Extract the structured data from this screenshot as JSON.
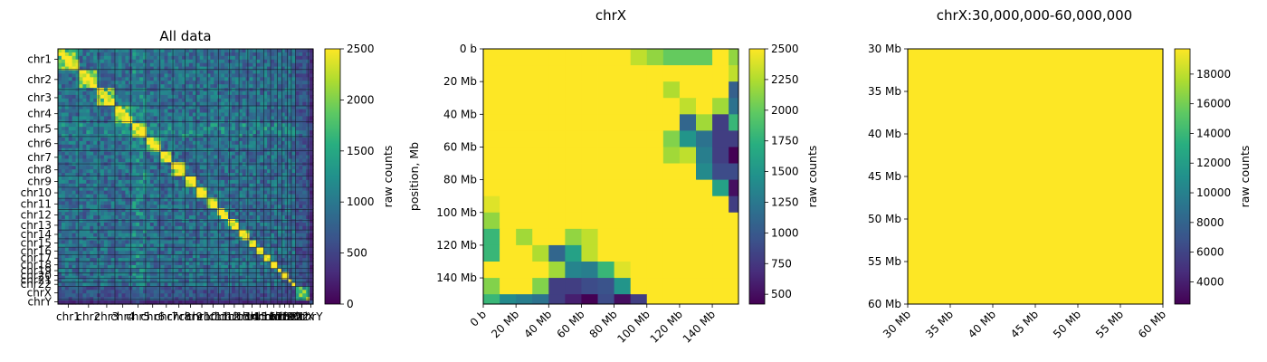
{
  "colormap": "viridis",
  "chart_data": [
    {
      "type": "heatmap",
      "title": "All data",
      "colorbar_label": "raw counts",
      "colorbar_ticks": [
        0,
        500,
        1000,
        1500,
        2000,
        2500
      ],
      "clim": [
        0,
        2500
      ],
      "ylabel": "",
      "chromosomes": [
        "chr1",
        "chr2",
        "chr3",
        "chr4",
        "chr5",
        "chr6",
        "chr7",
        "chr8",
        "chr9",
        "chr10",
        "chr11",
        "chr12",
        "chr13",
        "chr14",
        "chr15",
        "chr16",
        "chr17",
        "chr18",
        "chr19",
        "chr20",
        "chr21",
        "chr22",
        "chrX",
        "chrY"
      ],
      "chrom_lengths_mb": [
        249,
        242,
        198,
        190,
        181,
        171,
        159,
        145,
        138,
        134,
        135,
        133,
        114,
        107,
        102,
        90,
        83,
        80,
        59,
        64,
        47,
        51,
        156,
        57
      ],
      "x_tick_labels": [
        "chr1",
        "chr2",
        "chr3",
        "chr4",
        "chr5",
        "chr6",
        "chr7",
        "chr8",
        "chr9",
        "chr10",
        "chr11",
        "chr12",
        "chr13",
        "chr14",
        "chr15",
        "chr16",
        "chr17",
        "chr18",
        "chr19",
        "chr20",
        "chr21",
        "chr22",
        "chrX",
        "chrY"
      ],
      "y_tick_labels": [
        "chr1",
        "chr2",
        "chr3",
        "chr4",
        "chr5",
        "chr6",
        "chr7",
        "chr8",
        "chr9",
        "chr10",
        "chr11",
        "chr12",
        "chr13",
        "chr14",
        "chr15",
        "chr16",
        "chr17",
        "chr18",
        "chr19",
        "chr20",
        "chr21",
        "chr22",
        "chrX",
        "chrY"
      ],
      "matrix_background_level": 900,
      "matrix_diagonal_level": 2500
    },
    {
      "type": "heatmap",
      "title": "chrX",
      "ylabel": "position, Mb",
      "colorbar_label": "raw counts",
      "colorbar_ticks": [
        500,
        750,
        1000,
        1250,
        1500,
        1750,
        2000,
        2250,
        2500
      ],
      "clim": [
        420,
        2500
      ],
      "x_tick_labels": [
        "0 b",
        "20 Mb",
        "40 Mb",
        "60 Mb",
        "80 Mb",
        "100 Mb",
        "120 Mb",
        "140 Mb"
      ],
      "y_tick_labels": [
        "0 b",
        "20 Mb",
        "40 Mb",
        "60 Mb",
        "80 Mb",
        "100 Mb",
        "120 Mb",
        "140 Mb"
      ],
      "tick_values_mb": [
        0,
        20,
        40,
        60,
        80,
        100,
        120,
        140
      ],
      "extent_mb": [
        0,
        156
      ],
      "bin_size_mb": 10,
      "low_cells": [
        {
          "row": 0,
          "col": 10,
          "value": 2150
        },
        {
          "row": 0,
          "col": 11,
          "value": 2000
        },
        {
          "row": 0,
          "col": 12,
          "value": 2000
        },
        {
          "row": 0,
          "col": 13,
          "value": 2000
        },
        {
          "row": 0,
          "col": 15,
          "value": 2150
        },
        {
          "row": 0,
          "col": 14,
          "value": 2500
        },
        {
          "row": 0,
          "col": 9,
          "value": 2300
        },
        {
          "row": 1,
          "col": 15,
          "value": 2300
        },
        {
          "row": 2,
          "col": 11,
          "value": 2250
        },
        {
          "row": 2,
          "col": 15,
          "value": 1050
        },
        {
          "row": 3,
          "col": 12,
          "value": 2300
        },
        {
          "row": 3,
          "col": 14,
          "value": 2200
        },
        {
          "row": 3,
          "col": 15,
          "value": 1200
        },
        {
          "row": 4,
          "col": 12,
          "value": 1100
        },
        {
          "row": 4,
          "col": 13,
          "value": 2200
        },
        {
          "row": 4,
          "col": 14,
          "value": 800
        },
        {
          "row": 4,
          "col": 15,
          "value": 1800
        },
        {
          "row": 5,
          "col": 11,
          "value": 2100
        },
        {
          "row": 5,
          "col": 12,
          "value": 1500
        },
        {
          "row": 5,
          "col": 13,
          "value": 1200
        },
        {
          "row": 5,
          "col": 14,
          "value": 800
        },
        {
          "row": 5,
          "col": 15,
          "value": 800
        },
        {
          "row": 6,
          "col": 11,
          "value": 2200
        },
        {
          "row": 6,
          "col": 12,
          "value": 2300
        },
        {
          "row": 6,
          "col": 13,
          "value": 1300
        },
        {
          "row": 6,
          "col": 14,
          "value": 800
        },
        {
          "row": 6,
          "col": 15,
          "value": 420
        },
        {
          "row": 7,
          "col": 13,
          "value": 1400
        },
        {
          "row": 7,
          "col": 14,
          "value": 900
        },
        {
          "row": 7,
          "col": 15,
          "value": 900
        },
        {
          "row": 8,
          "col": 14,
          "value": 1600
        },
        {
          "row": 8,
          "col": 15,
          "value": 500
        },
        {
          "row": 9,
          "col": 15,
          "value": 800
        },
        {
          "row": 9,
          "col": 0,
          "value": 2400
        },
        {
          "row": 10,
          "col": 0,
          "value": 2150
        },
        {
          "row": 11,
          "col": 0,
          "value": 1800
        },
        {
          "row": 11,
          "col": 2,
          "value": 2200
        },
        {
          "row": 11,
          "col": 5,
          "value": 2150
        },
        {
          "row": 11,
          "col": 6,
          "value": 2300
        },
        {
          "row": 12,
          "col": 0,
          "value": 1800
        },
        {
          "row": 12,
          "col": 3,
          "value": 2250
        },
        {
          "row": 12,
          "col": 4,
          "value": 1100
        },
        {
          "row": 12,
          "col": 5,
          "value": 1600
        },
        {
          "row": 12,
          "col": 6,
          "value": 2300
        },
        {
          "row": 13,
          "col": 4,
          "value": 2200
        },
        {
          "row": 13,
          "col": 5,
          "value": 1350
        },
        {
          "row": 13,
          "col": 6,
          "value": 1300
        },
        {
          "row": 13,
          "col": 7,
          "value": 1800
        },
        {
          "row": 13,
          "col": 8,
          "value": 2400
        },
        {
          "row": 14,
          "col": 0,
          "value": 2100
        },
        {
          "row": 14,
          "col": 3,
          "value": 2100
        },
        {
          "row": 14,
          "col": 4,
          "value": 800
        },
        {
          "row": 14,
          "col": 5,
          "value": 800
        },
        {
          "row": 14,
          "col": 6,
          "value": 900
        },
        {
          "row": 14,
          "col": 7,
          "value": 950
        },
        {
          "row": 14,
          "col": 8,
          "value": 1500
        },
        {
          "row": 15,
          "col": 0,
          "value": 1800
        },
        {
          "row": 15,
          "col": 1,
          "value": 1400
        },
        {
          "row": 15,
          "col": 2,
          "value": 1300
        },
        {
          "row": 15,
          "col": 3,
          "value": 1200
        },
        {
          "row": 15,
          "col": 4,
          "value": 800
        },
        {
          "row": 15,
          "col": 5,
          "value": 600
        },
        {
          "row": 15,
          "col": 6,
          "value": 420
        },
        {
          "row": 15,
          "col": 7,
          "value": 900
        },
        {
          "row": 15,
          "col": 8,
          "value": 500
        },
        {
          "row": 15,
          "col": 9,
          "value": 800
        }
      ],
      "default_value": 2500
    },
    {
      "type": "heatmap",
      "title": "chrX:30,000,000-60,000,000",
      "ylabel": "",
      "colorbar_label": "raw counts",
      "colorbar_ticks": [
        4000,
        6000,
        8000,
        10000,
        12000,
        14000,
        16000,
        18000
      ],
      "clim": [
        2500,
        19700
      ],
      "x_tick_labels": [
        "30 Mb",
        "35 Mb",
        "40 Mb",
        "45 Mb",
        "50 Mb",
        "55 Mb",
        "60 Mb"
      ],
      "y_tick_labels": [
        "30 Mb",
        "35 Mb",
        "40 Mb",
        "45 Mb",
        "50 Mb",
        "55 Mb",
        "60 Mb"
      ],
      "tick_values_mb": [
        30,
        35,
        40,
        45,
        50,
        55,
        60
      ],
      "extent_mb": [
        30,
        60
      ],
      "uniform_value": 19700
    }
  ]
}
